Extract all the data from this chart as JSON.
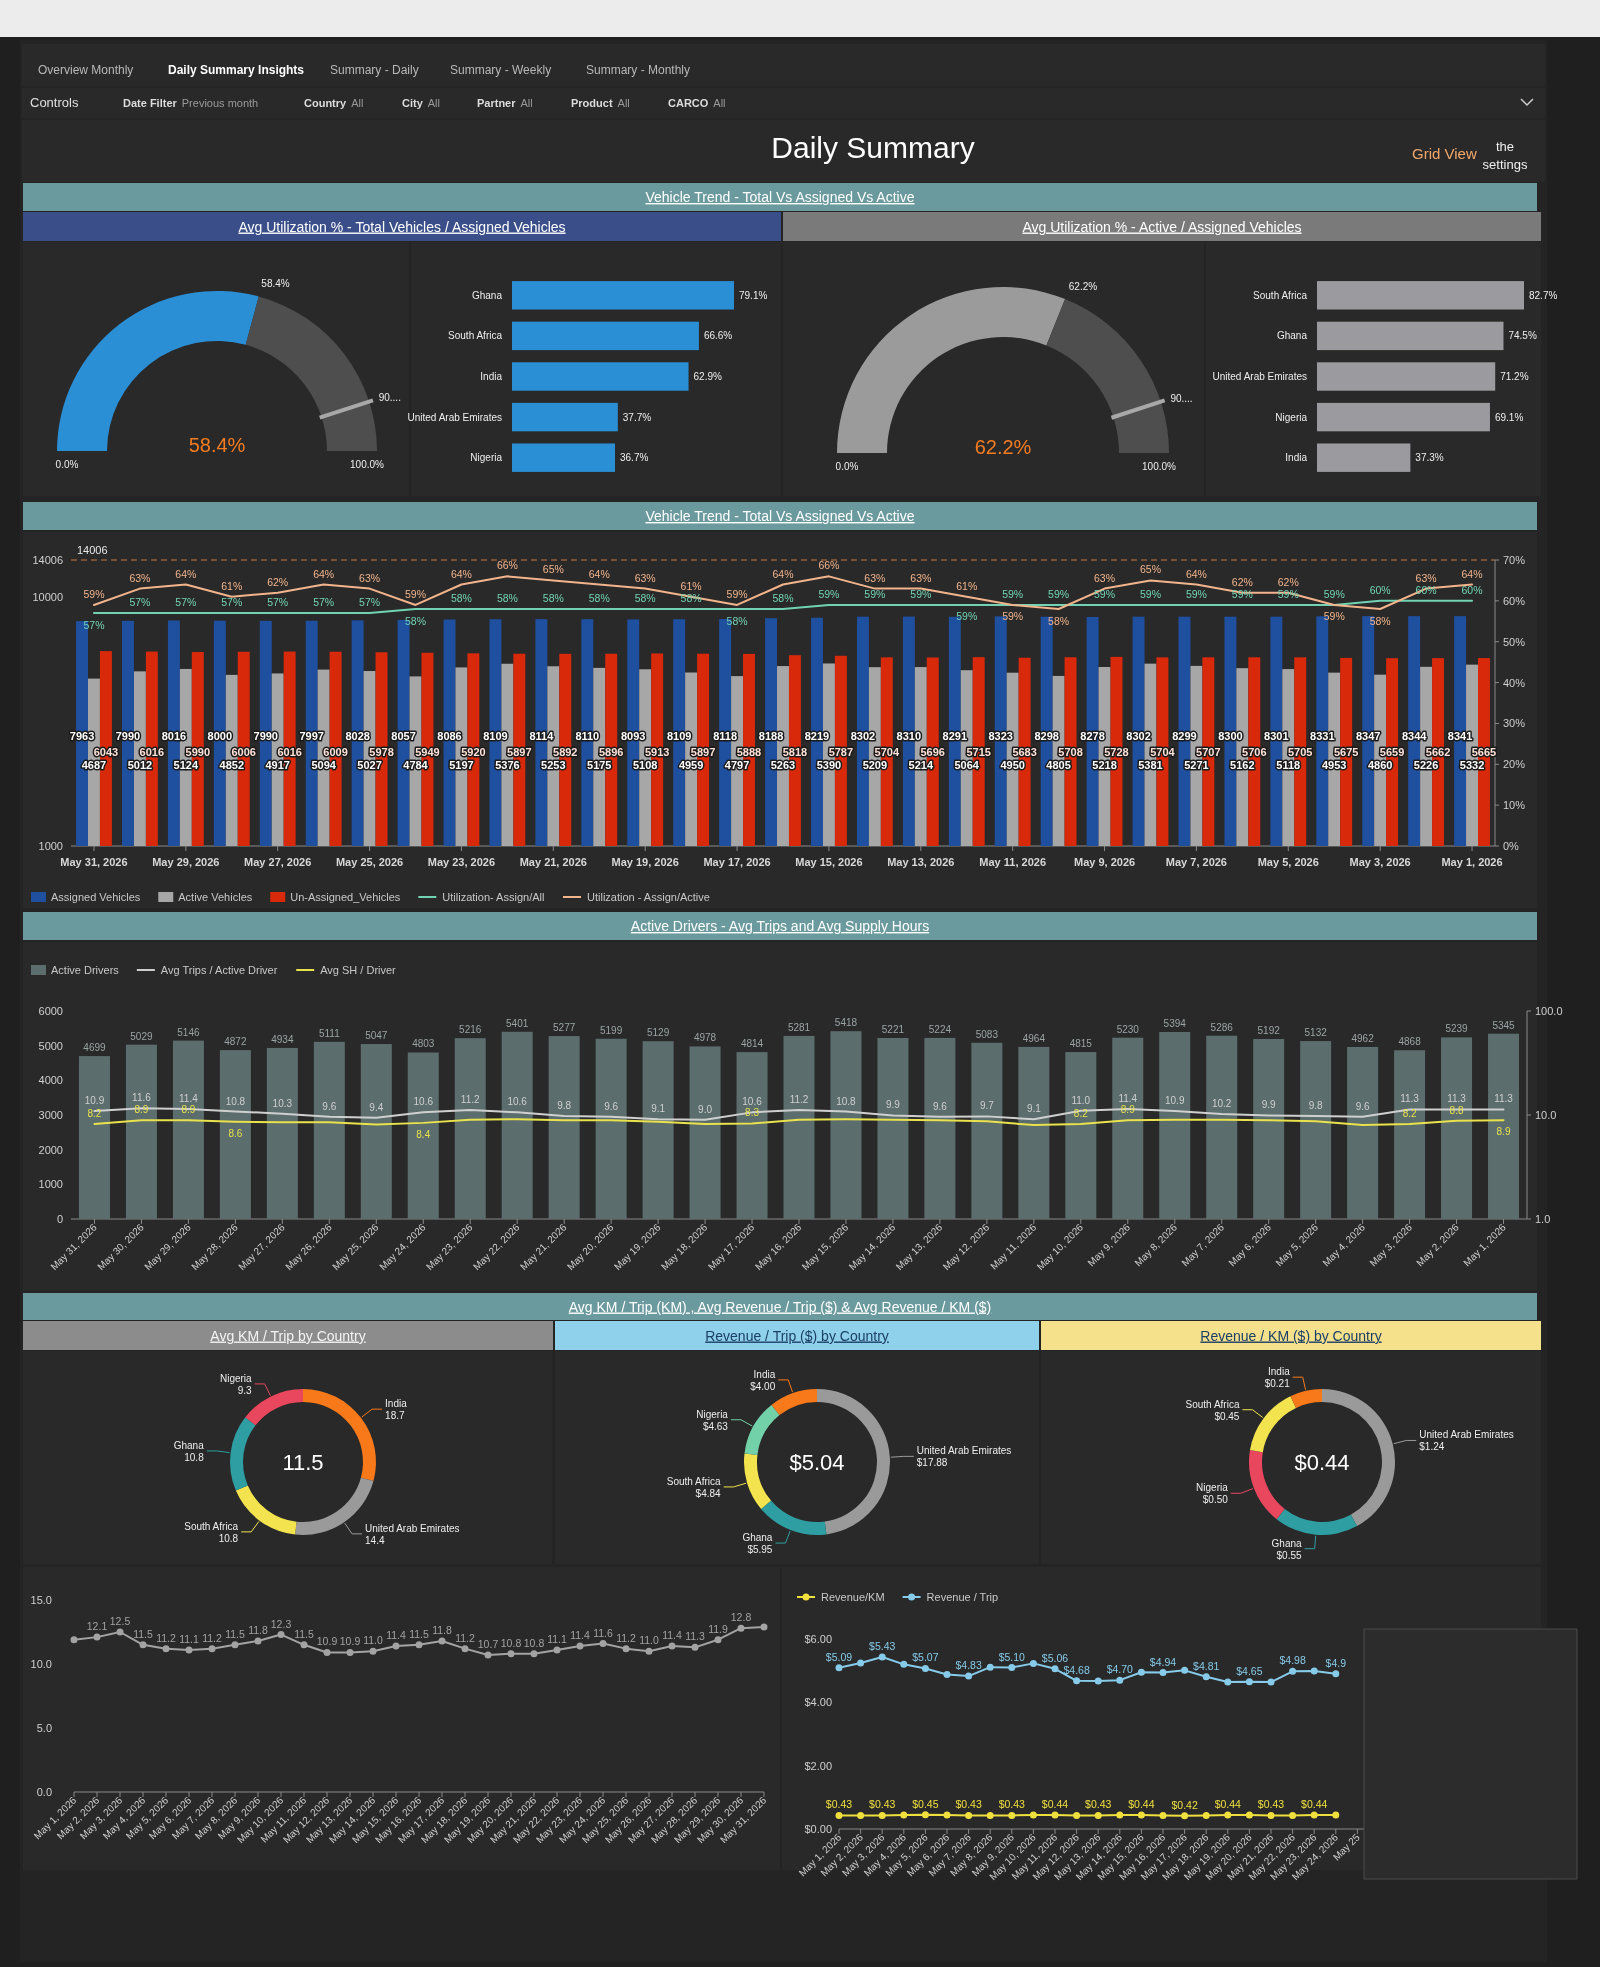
{
  "chart_data": [
    {
      "type": "other",
      "title": "Daily Summary",
      "subtitle": "Vehicle Trend - Total Vs Assigned Vs Active",
      "annotations": [
        "Overview Monthly",
        "Daily Summary Insights",
        "Summary - Daily",
        "Summary - Weekly",
        "Summary - Monthly",
        "Controls",
        "Date Filter",
        "Previous month",
        "Country",
        "All",
        "City",
        "All",
        "Partner",
        "All",
        "Product",
        "All",
        "CARCO",
        "All",
        "Grid View",
        "the settings"
      ]
    },
    {
      "type": "donut",
      "title": "Avg Utilization % - Total Vehicles / Assigned Vehicles",
      "categories": [
        null,
        null
      ],
      "values": [
        58.4,
        41.6
      ],
      "colors": [
        "#2b8fd6",
        "#4e4e4e"
      ],
      "value_labels": [
        "58.4%",
        null
      ],
      "annotations": [
        "58.4%",
        "0.0%",
        "100.0%",
        "90...."
      ]
    },
    {
      "type": "bar",
      "orientation": "horizontal",
      "categories": [
        "Ghana",
        "South Africa",
        "India",
        "United Arab Emirates",
        "Nigeria"
      ],
      "values": [
        79.1,
        66.6,
        62.9,
        37.7,
        36.7
      ],
      "value_labels": [
        "79.1%",
        "66.6%",
        "62.9%",
        "37.7%",
        "36.7%"
      ],
      "color": "#2b8fd6"
    },
    {
      "type": "donut",
      "title": "Avg Utilization % - Active / Assigned Vehicles",
      "categories": [
        null,
        null
      ],
      "values": [
        62.2,
        37.8
      ],
      "colors": [
        "#9b9b9b",
        "#4e4e4e"
      ],
      "value_labels": [
        "62.2%",
        null
      ],
      "annotations": [
        "62.2%",
        "0.0%",
        "100.0%",
        "90...."
      ]
    },
    {
      "type": "bar",
      "orientation": "horizontal",
      "categories": [
        "South Africa",
        "Ghana",
        "United Arab Emirates",
        "Nigeria",
        "India"
      ],
      "values": [
        82.7,
        74.5,
        71.2,
        69.1,
        37.3
      ],
      "value_labels": [
        "82.7%",
        "74.5%",
        "71.2%",
        "69.1%",
        "37.3%"
      ],
      "color": "#9b9a9e"
    },
    {
      "type": "bar",
      "title": "Vehicle Trend - Total Vs Assigned Vs Active",
      "categories": [
        "May 31, 2026",
        null,
        "May 29, 2026",
        null,
        "May 27, 2026",
        null,
        "May 25, 2026",
        null,
        "May 23, 2026",
        null,
        "May 21, 2026",
        null,
        "May 19, 2026",
        null,
        "May 17, 2026",
        null,
        "May 15, 2026",
        null,
        "May 13, 2026",
        null,
        "May 11, 2026",
        null,
        "May 9, 2026",
        null,
        "May 7, 2026",
        null,
        "May 5, 2026",
        null,
        "May 3, 2026",
        null,
        "May 1, 2026"
      ],
      "series": [
        {
          "name": "Assigned Vehicles",
          "color": "#1f4f9f",
          "values": [
            7963,
            7990,
            8016,
            8000,
            7990,
            7997,
            8028,
            8057,
            8086,
            8109,
            8114,
            8110,
            8093,
            8109,
            8118,
            8188,
            8219,
            8302,
            8310,
            8291,
            8323,
            8298,
            8278,
            8302,
            8299,
            8300,
            8301,
            8331,
            8347,
            8344,
            8341
          ]
        },
        {
          "name": "Active Vehicles",
          "color": "#a7a7a7",
          "values": [
            4687,
            5012,
            5124,
            4852,
            4917,
            5094,
            5027,
            4784,
            5197,
            5376,
            5253,
            5175,
            5108,
            4959,
            4797,
            5263,
            5390,
            5209,
            5214,
            5064,
            4950,
            4805,
            5218,
            5381,
            5271,
            5162,
            5118,
            4953,
            4860,
            5226,
            5332
          ]
        },
        {
          "name": "Un-Assigned_Vehicles",
          "color": "#d9290b",
          "values": [
            6043,
            6016,
            5990,
            6006,
            6016,
            6009,
            5978,
            5949,
            5920,
            5897,
            5892,
            5896,
            5913,
            5897,
            5888,
            5818,
            5787,
            5704,
            5696,
            5715,
            5683,
            5708,
            5728,
            5704,
            5707,
            5706,
            5705,
            5675,
            5659,
            5662,
            5665
          ]
        },
        {
          "name": "Utilization- Assign/All",
          "type": "line",
          "axis": "y2",
          "color": "#72d3b4",
          "values": [
            57,
            57,
            57,
            57,
            57,
            57,
            57,
            58,
            58,
            58,
            58,
            58,
            58,
            58,
            58,
            58,
            59,
            59,
            59,
            59,
            59,
            59,
            59,
            59,
            59,
            59,
            59,
            59,
            60,
            60,
            60
          ],
          "value_labels": [
            "57%",
            "57%",
            "57%",
            "57%",
            "57%",
            "57%",
            "57%",
            "58%",
            "58%",
            "58%",
            "58%",
            "58%",
            "58%",
            "58%",
            "58%",
            "58%",
            "59%",
            "59%",
            "59%",
            "59%",
            "59%",
            "59%",
            "59%",
            "59%",
            "59%",
            "59%",
            "59%",
            "59%",
            "60%",
            "60%",
            "60%"
          ]
        },
        {
          "name": "Utilization - Assign/Active",
          "type": "line",
          "axis": "y2",
          "color": "#f2b48c",
          "values": [
            59,
            63,
            64,
            61,
            62,
            64,
            63,
            59,
            64,
            66,
            65,
            64,
            63,
            61,
            59,
            64,
            66,
            63,
            63,
            61,
            59,
            58,
            63,
            65,
            64,
            62,
            62,
            59,
            58,
            63,
            64
          ],
          "value_labels": [
            "59%",
            "63%",
            "64%",
            "61%",
            "62%",
            "64%",
            "63%",
            "59%",
            "64%",
            "66%",
            "65%",
            "64%",
            "63%",
            "61%",
            "59%",
            "64%",
            "66%",
            "63%",
            "63%",
            "61%",
            "59%",
            "58%",
            "63%",
            "65%",
            "64%",
            "62%",
            "62%",
            "59%",
            "58%",
            "63%",
            "64%"
          ]
        }
      ],
      "data_labels": true,
      "log": "y",
      "ylim": [
        1000,
        14006
      ],
      "yticks": [
        1000,
        10000,
        14006
      ],
      "y2lim": [
        0,
        70
      ],
      "y2ticks": [
        {
          "value": 0,
          "label": "0%"
        },
        {
          "value": 10,
          "label": "10%"
        },
        {
          "value": 20,
          "label": "20%"
        },
        {
          "value": 30,
          "label": "30%"
        },
        {
          "value": 40,
          "label": "40%"
        },
        {
          "value": 50,
          "label": "50%"
        },
        {
          "value": 60,
          "label": "60%"
        },
        {
          "value": 70,
          "label": "70%"
        }
      ],
      "ref_lines": [
        {
          "axis": "y",
          "value": 14006,
          "label": "14006",
          "color": "#c9783e",
          "line_style": "dashed"
        }
      ],
      "legend": "bottom"
    },
    {
      "type": "bar",
      "title": "Active Drivers - Avg Trips and Avg Supply Hours",
      "categories": [
        "May 31, 2026",
        "May 30, 2026",
        "May 29, 2026",
        "May 28, 2026",
        "May 27, 2026",
        "May 26, 2026",
        "May 25, 2026",
        "May 24, 2026",
        "May 23, 2026",
        "May 22, 2026",
        "May 21, 2026",
        "May 20, 2026",
        "May 19, 2026",
        "May 18, 2026",
        "May 17, 2026",
        "May 16, 2026",
        "May 15, 2026",
        "May 14, 2026",
        "May 13, 2026",
        "May 12, 2026",
        "May 11, 2026",
        "May 10, 2026",
        "May 9, 2026",
        "May 8, 2026",
        "May 7, 2026",
        "May 6, 2026",
        "May 5, 2026",
        "May 4, 2026",
        "May 3, 2026",
        "May 2, 2026",
        "May 1, 2026"
      ],
      "series": [
        {
          "name": "Active Drivers",
          "color": "#5b6d6c",
          "values": [
            4699,
            5029,
            5146,
            4872,
            4934,
            5111,
            5047,
            4803,
            5216,
            5401,
            5277,
            5199,
            5129,
            4978,
            4814,
            5281,
            5418,
            5221,
            5224,
            5083,
            4964,
            4815,
            5230,
            5394,
            5286,
            5192,
            5132,
            4962,
            4868,
            5239,
            5345
          ]
        },
        {
          "name": "Avg Trips / Active Driver",
          "type": "line",
          "axis": "y2",
          "color": "#cfcfcf",
          "values": [
            10.9,
            11.6,
            11.4,
            10.8,
            10.3,
            9.6,
            9.4,
            10.6,
            11.2,
            10.6,
            9.8,
            9.6,
            9.1,
            9.0,
            10.6,
            11.2,
            10.8,
            9.9,
            9.6,
            9.7,
            9.1,
            11.0,
            11.4,
            10.9,
            10.2,
            9.9,
            9.8,
            9.6,
            11.3,
            11.3,
            11.3
          ],
          "value_labels": [
            "10.9",
            "11.6",
            "11.4",
            "10.8",
            "10.3",
            "9.6",
            "9.4",
            "10.6",
            "11.2",
            "10.6",
            "9.8",
            "9.6",
            "9.1",
            "9.0",
            "10.6",
            "11.2",
            "10.8",
            "9.9",
            "9.6",
            "9.7",
            "9.1",
            "11.0",
            "11.4",
            "10.9",
            "10.2",
            "9.9",
            "9.8",
            "9.6",
            "11.3",
            "11.3",
            "11.3"
          ]
        },
        {
          "name": "Avg SH / Driver",
          "type": "line",
          "axis": "y2",
          "color": "#e9e24c",
          "values": [
            8.2,
            8.9,
            8.9,
            8.6,
            8.5,
            8.5,
            8.1,
            8.4,
            9.0,
            9.1,
            8.9,
            8.9,
            8.6,
            8.2,
            8.3,
            9.0,
            9.1,
            9.0,
            8.9,
            8.7,
            8.0,
            8.2,
            8.9,
            9.0,
            9.0,
            8.9,
            8.7,
            8.0,
            8.2,
            8.8,
            8.9
          ],
          "value_labels": [
            "8.2",
            "8.9",
            "8.9",
            "8.6",
            null,
            null,
            null,
            "8.4",
            null,
            null,
            null,
            null,
            null,
            null,
            "8.3",
            null,
            null,
            null,
            null,
            null,
            null,
            "8.2",
            "8.9",
            null,
            null,
            null,
            null,
            null,
            "8.2",
            "8.8",
            "8.9"
          ]
        }
      ],
      "data_labels": true,
      "ylim": [
        0,
        6000
      ],
      "yticks": [
        0,
        1000,
        2000,
        3000,
        4000,
        5000,
        6000
      ],
      "log": "y2",
      "y2lim": [
        1,
        100
      ],
      "y2ticks": [
        {
          "value": 1,
          "label": "1.0"
        },
        {
          "value": 10,
          "label": "10.0"
        },
        {
          "value": 100,
          "label": "100.0"
        }
      ],
      "legend": "top left"
    },
    {
      "type": "other",
      "title": "Avg KM / Trip (KM) , Avg Revenue / Trip ($) & Avg Revenue / KM ($)"
    },
    {
      "type": "donut",
      "title": "Avg KM / Trip by Country",
      "categories": [
        "India",
        "United Arab Emirates",
        "South Africa",
        "Ghana",
        "Nigeria"
      ],
      "values": [
        18.7,
        14.4,
        10.8,
        10.8,
        9.3
      ],
      "colors": [
        "#f7791a",
        "#9a9a9a",
        "#f3e44f",
        "#2f9ea2",
        "#e9475e"
      ],
      "value_labels": [
        "18.7",
        "14.4",
        "10.8",
        "10.8",
        "9.3"
      ],
      "annotations": [
        "11.5"
      ]
    },
    {
      "type": "donut",
      "title": "Revenue / Trip ($) by Country",
      "categories": [
        "United Arab Emirates",
        "Ghana",
        "South Africa",
        "Nigeria",
        "India"
      ],
      "values": [
        17.88,
        5.95,
        4.84,
        4.63,
        4.0
      ],
      "colors": [
        "#9a9a9a",
        "#2f9ea2",
        "#f3e44f",
        "#72d1a8",
        "#f7791a"
      ],
      "value_labels": [
        "$17.88",
        "$5.95",
        "$4.84",
        "$4.63",
        "$4.00"
      ],
      "annotations": [
        "$5.04"
      ]
    },
    {
      "type": "donut",
      "title": "Revenue / KM ($) by Country",
      "categories": [
        "United Arab Emirates",
        "Ghana",
        "Nigeria",
        "South Africa",
        "India"
      ],
      "values": [
        1.24,
        0.55,
        0.5,
        0.45,
        0.21
      ],
      "colors": [
        "#9a9a9a",
        "#2f9ea2",
        "#e9475e",
        "#f3e44f",
        "#f7791a"
      ],
      "value_labels": [
        "$1.24",
        "$0.55",
        "$0.50",
        "$0.45",
        "$0.21"
      ],
      "annotations": [
        "$0.44"
      ]
    },
    {
      "type": "line",
      "categories": [
        "May 1, 2026",
        "May 2, 2026",
        "May 3, 2026",
        "May 4, 2026",
        "May 5, 2026",
        "May 6, 2026",
        "May 7, 2026",
        "May 8, 2026",
        "May 9, 2026",
        "May 10, 2026",
        "May 11, 2026",
        "May 12, 2026",
        "May 13, 2026",
        "May 14, 2026",
        "May 15, 2026",
        "May 16, 2026",
        "May 17, 2026",
        "May 18, 2026",
        "May 19, 2026",
        "May 20, 2026",
        "May 21, 2026",
        "May 22, 2026",
        "May 23, 2026",
        "May 24, 2026",
        "May 25, 2026",
        "May 26, 2026",
        "May 27, 2026",
        "May 28, 2026",
        "May 29, 2026",
        "May 30, 2026",
        "May 31, 2026"
      ],
      "values": [
        11.9,
        12.1,
        12.5,
        11.5,
        11.2,
        11.1,
        11.2,
        11.5,
        11.8,
        12.3,
        11.5,
        10.9,
        10.9,
        11.0,
        11.4,
        11.5,
        11.8,
        11.2,
        10.7,
        10.8,
        10.8,
        11.1,
        11.4,
        11.6,
        11.2,
        11.0,
        11.4,
        11.3,
        11.9,
        12.8,
        12.9
      ],
      "value_labels": [
        null,
        "12.1",
        "12.5",
        "11.5",
        "11.2",
        "11.1",
        "11.2",
        "11.5",
        "11.8",
        "12.3",
        "11.5",
        "10.9",
        "10.9",
        "11.0",
        "11.4",
        "11.5",
        "11.8",
        "11.2",
        "10.7",
        "10.8",
        "10.8",
        "11.1",
        "11.4",
        "11.6",
        "11.2",
        "11.0",
        "11.4",
        "11.3",
        "11.9",
        "12.8",
        null
      ],
      "color": "#a3a3a3",
      "marker": "circle",
      "ylim": [
        0,
        15
      ],
      "yticks": [
        {
          "value": 0,
          "label": "0.0"
        },
        {
          "value": 5,
          "label": "5.0"
        },
        {
          "value": 10,
          "label": "10.0"
        },
        {
          "value": 15,
          "label": "15.0"
        }
      ]
    },
    {
      "type": "line",
      "categories": [
        "May 1, 2026",
        "May 2, 2026",
        "May 3, 2026",
        "May 4, 2026",
        "May 5, 2026",
        "May 6, 2026",
        "May 7, 2026",
        "May 8, 2026",
        "May 9, 2026",
        "May 10, 2026",
        "May 11, 2026",
        "May 12, 2026",
        "May 13, 2026",
        "May 14, 2026",
        "May 15, 2026",
        "May 16, 2026",
        "May 17, 2026",
        "May 18, 2026",
        "May 19, 2026",
        "May 20, 2026",
        "May 21, 2026",
        "May 22, 2026",
        "May 23, 2026",
        "May 24, 2026",
        "May 25",
        null,
        null,
        null,
        null,
        null,
        null
      ],
      "series": [
        {
          "name": "Revenue/KM",
          "color": "#f0e03e",
          "values": [
            0.43,
            0.43,
            0.43,
            0.44,
            0.45,
            0.44,
            0.43,
            0.43,
            0.43,
            0.44,
            0.44,
            0.43,
            0.43,
            0.44,
            0.44,
            0.43,
            0.42,
            0.43,
            0.44,
            0.44,
            0.43,
            0.43,
            0.44,
            0.44,
            null,
            null,
            null,
            null,
            null,
            null,
            null
          ],
          "value_labels": [
            "$0.43",
            null,
            "$0.43",
            null,
            "$0.45",
            null,
            "$0.43",
            null,
            "$0.43",
            null,
            "$0.44",
            null,
            "$0.43",
            null,
            "$0.44",
            null,
            "$0.42",
            null,
            "$0.44",
            null,
            "$0.43",
            null,
            "$0.44",
            null,
            null,
            null,
            null,
            null,
            null,
            null,
            null
          ]
        },
        {
          "name": "Revenue / Trip",
          "color": "#86cbe9",
          "values": [
            5.09,
            5.24,
            5.43,
            5.2,
            5.07,
            4.88,
            4.83,
            5.11,
            5.1,
            5.23,
            5.06,
            4.68,
            4.67,
            4.7,
            4.95,
            4.94,
            5.01,
            4.81,
            4.64,
            4.65,
            4.64,
            4.98,
            4.99,
            4.9,
            null,
            null,
            null,
            null,
            null,
            null,
            null
          ],
          "value_labels": [
            "$5.09",
            null,
            "$5.43",
            null,
            "$5.07",
            null,
            "$4.83",
            null,
            "$5.10",
            null,
            "$5.06",
            "$4.68",
            null,
            "$4.70",
            null,
            "$4.94",
            null,
            "$4.81",
            null,
            "$4.65",
            null,
            "$4.98",
            null,
            "$4.9",
            null,
            null,
            null,
            null,
            null,
            null,
            null
          ]
        }
      ],
      "marker": "circle",
      "ylim": [
        0,
        6
      ],
      "yticks": [
        {
          "value": 0,
          "label": "$0.00"
        },
        {
          "value": 2,
          "label": "$2.00"
        },
        {
          "value": 4,
          "label": "$4.00"
        },
        {
          "value": 6,
          "label": "$6.00"
        }
      ],
      "legend": "top left"
    }
  ]
}
